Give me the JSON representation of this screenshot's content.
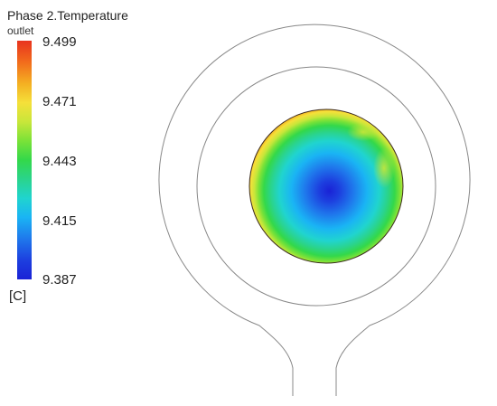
{
  "legend": {
    "title": "Phase 2.Temperature",
    "subtitle": "outlet",
    "ticks": [
      "9.499",
      "9.471",
      "9.443",
      "9.415",
      "9.387"
    ],
    "units": "[C]"
  },
  "colors": {
    "max": "#e8331e",
    "high": "#f5e03a",
    "mid": "#33d84a",
    "low": "#1ab4f4",
    "min": "#1a22d6",
    "outline": "#777777"
  }
}
